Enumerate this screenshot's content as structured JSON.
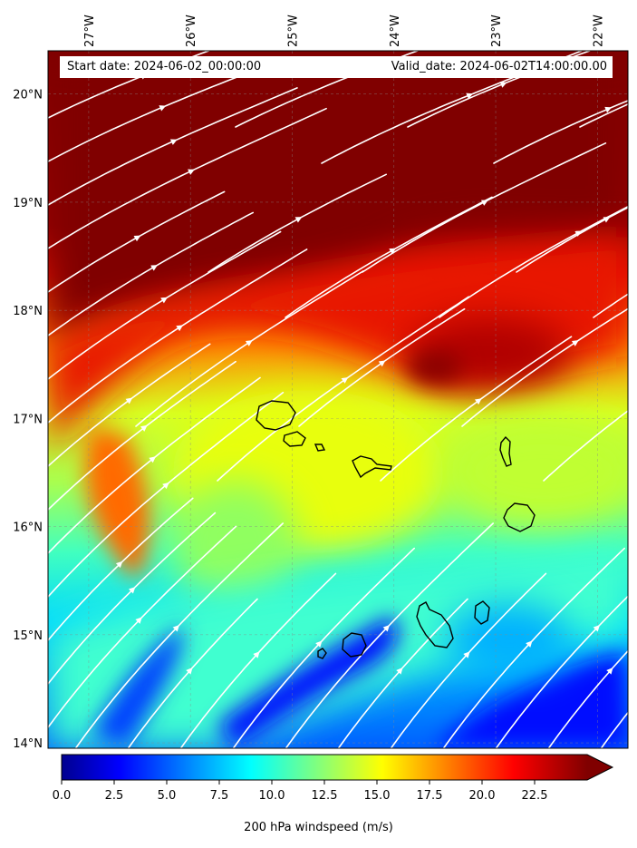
{
  "map": {
    "start_date_label": "Start date: 2024-06-02_00:00:00",
    "valid_date_label": "Valid_date: 2024-06-02T14:00:00.00",
    "lon_ticks": [
      "27°W",
      "26°W",
      "25°W",
      "24°W",
      "23°W",
      "22°W"
    ],
    "lat_ticks": [
      "20°N",
      "19°N",
      "18°N",
      "17°N",
      "16°N",
      "15°N",
      "14°N"
    ],
    "lon_values": [
      -27,
      -26,
      -25,
      -24,
      -23,
      -22
    ],
    "lat_values": [
      20,
      19,
      18,
      17,
      16,
      15,
      14
    ],
    "extent": {
      "lon_min": -27.4,
      "lon_max": -21.7,
      "lat_min": 13.95,
      "lat_max": 20.4
    },
    "field": "200 hPa windspeed",
    "colormap": "jet",
    "streamline_color": "#ffffff",
    "coastline_color": "#000000",
    "islands": [
      "Santo Antão",
      "São Vicente",
      "Santa Luzia",
      "São Nicolau",
      "Sal",
      "Boa Vista",
      "Maio",
      "Santiago",
      "Fogo",
      "Brava"
    ]
  },
  "colorbar": {
    "label": "200 hPa windspeed (m/s)",
    "vmin": 0.0,
    "vmax": 25.0,
    "tick_values": [
      0.0,
      2.5,
      5.0,
      7.5,
      10.0,
      12.5,
      15.0,
      17.5,
      20.0,
      22.5
    ],
    "tick_labels": [
      "0.0",
      "2.5",
      "5.0",
      "7.5",
      "10.0",
      "12.5",
      "15.0",
      "17.5",
      "20.0",
      "22.5"
    ],
    "extend": "max",
    "colors": {
      "dark_blue": "#00008f",
      "blue": "#0000ff",
      "cyan": "#00ffff",
      "yellow": "#ffff00",
      "red": "#ff0000",
      "dark_red": "#800000"
    }
  }
}
